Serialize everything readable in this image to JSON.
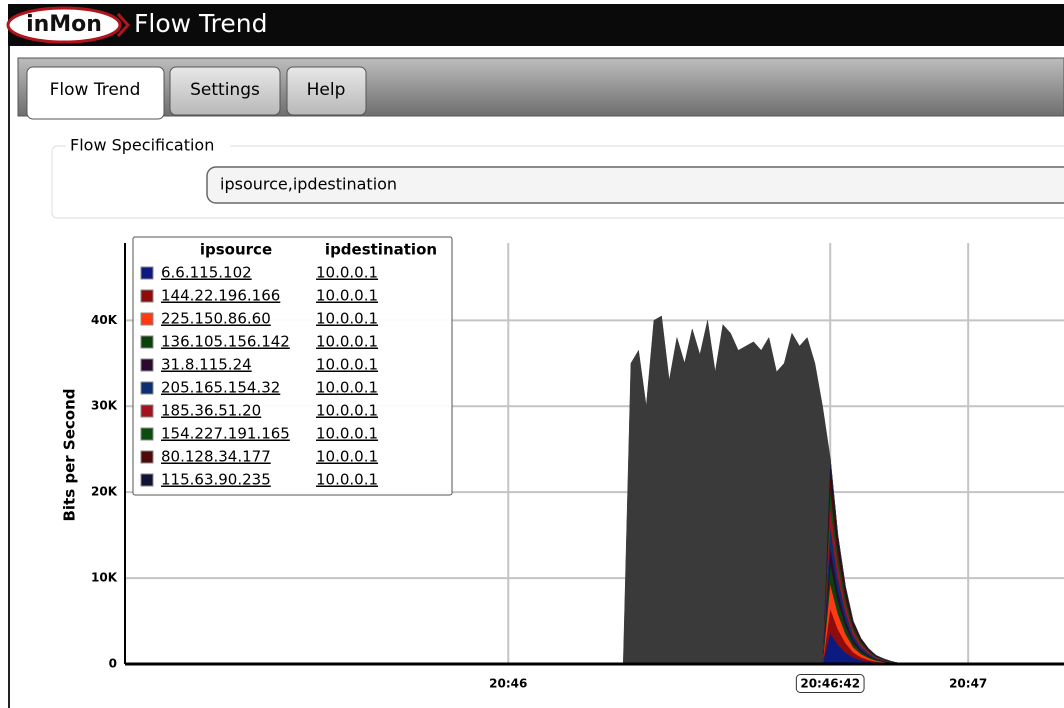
{
  "header": {
    "logo": "inMon",
    "title": "Flow Trend"
  },
  "tabs": [
    "Flow Trend",
    "Settings",
    "Help"
  ],
  "flow_spec": {
    "legend": "Flow Specification",
    "value": "ipsource,ipdestination"
  },
  "chart_data": {
    "type": "area",
    "ylabel": "Bits per Second",
    "xlim": [
      -50,
      72.5
    ],
    "xticks": [
      {
        "value": 0,
        "label": "20:46"
      },
      {
        "value": 42,
        "label": "20:46:42"
      },
      {
        "value": 60,
        "label": "20:47"
      }
    ],
    "ylim": [
      0,
      49000
    ],
    "yticks": [
      0,
      {
        "value": 10000,
        "label": "10K"
      },
      {
        "value": 20000,
        "label": "20K"
      },
      {
        "value": 30000,
        "label": "30K"
      },
      {
        "value": 40000,
        "label": "40K"
      }
    ],
    "grid": true,
    "stacked": true,
    "legend_columns": [
      "ipsource",
      "ipdestination"
    ],
    "x": [
      15,
      16,
      17,
      18,
      19,
      20,
      21,
      22,
      23,
      24,
      25,
      26,
      27,
      28,
      29,
      30,
      31,
      32,
      33,
      34,
      35,
      36,
      37,
      38,
      39,
      40,
      41,
      42,
      43,
      44,
      45,
      46,
      47,
      48,
      49,
      50,
      51,
      52
    ],
    "series": [
      {
        "name": "6.6.115.102",
        "destination": "10.0.0.1",
        "color": "#0d1a80",
        "values": [
          0,
          0,
          0,
          0,
          0,
          0,
          0,
          0,
          0,
          0,
          0,
          0,
          0,
          0,
          0,
          0,
          0,
          0,
          0,
          0,
          0,
          0,
          0,
          0,
          0,
          0,
          0,
          3600,
          2250,
          1350,
          750,
          450,
          270,
          150,
          90,
          45,
          15,
          0
        ]
      },
      {
        "name": "144.22.196.166",
        "destination": "10.0.0.1",
        "color": "#8e0c0c",
        "values": [
          0,
          0,
          0,
          0,
          0,
          0,
          0,
          0,
          0,
          0,
          0,
          0,
          0,
          0,
          0,
          0,
          0,
          0,
          0,
          0,
          0,
          0,
          0,
          0,
          0,
          0,
          0,
          2880,
          1800,
          1080,
          600,
          360,
          216,
          120,
          72,
          36,
          12,
          0
        ]
      },
      {
        "name": "225.150.86.60",
        "destination": "10.0.0.1",
        "color": "#ff3a12",
        "values": [
          0,
          0,
          0,
          0,
          0,
          0,
          0,
          0,
          0,
          0,
          0,
          0,
          0,
          0,
          0,
          0,
          0,
          0,
          0,
          0,
          0,
          0,
          0,
          0,
          0,
          0,
          0,
          2880,
          1800,
          1080,
          600,
          360,
          216,
          120,
          72,
          36,
          12,
          0
        ]
      },
      {
        "name": "136.105.156.142",
        "destination": "10.0.0.1",
        "color": "#0b420b",
        "values": [
          0,
          0,
          0,
          0,
          0,
          0,
          0,
          0,
          0,
          0,
          0,
          0,
          0,
          0,
          0,
          0,
          0,
          0,
          0,
          0,
          0,
          0,
          0,
          0,
          0,
          0,
          0,
          2400,
          1500,
          900,
          500,
          300,
          180,
          100,
          60,
          30,
          10,
          0
        ]
      },
      {
        "name": "31.8.115.24",
        "destination": "10.0.0.1",
        "color": "#2c0a30",
        "values": [
          0,
          0,
          0,
          0,
          0,
          0,
          0,
          0,
          0,
          0,
          0,
          0,
          0,
          0,
          0,
          0,
          0,
          0,
          0,
          0,
          0,
          0,
          0,
          0,
          0,
          0,
          0,
          1920,
          1200,
          720,
          400,
          240,
          144,
          80,
          48,
          24,
          8,
          0
        ]
      },
      {
        "name": "205.165.154.32",
        "destination": "10.0.0.1",
        "color": "#0c2e72",
        "values": [
          0,
          0,
          0,
          0,
          0,
          0,
          0,
          0,
          0,
          0,
          0,
          0,
          0,
          0,
          0,
          0,
          0,
          0,
          0,
          0,
          0,
          0,
          0,
          0,
          0,
          0,
          0,
          2400,
          1500,
          900,
          500,
          300,
          180,
          100,
          60,
          30,
          10,
          0
        ]
      },
      {
        "name": "185.36.51.20",
        "destination": "10.0.0.1",
        "color": "#a3121f",
        "values": [
          0,
          0,
          0,
          0,
          0,
          0,
          0,
          0,
          0,
          0,
          0,
          0,
          0,
          0,
          0,
          0,
          0,
          0,
          0,
          0,
          0,
          0,
          0,
          0,
          0,
          0,
          0,
          2400,
          1500,
          900,
          500,
          300,
          180,
          100,
          60,
          30,
          10,
          0
        ]
      },
      {
        "name": "154.227.191.165",
        "destination": "10.0.0.1",
        "color": "#0c4d0c",
        "values": [
          0,
          0,
          0,
          0,
          0,
          0,
          0,
          0,
          0,
          0,
          0,
          0,
          0,
          0,
          0,
          0,
          0,
          0,
          0,
          0,
          0,
          0,
          0,
          0,
          0,
          0,
          0,
          1920,
          1200,
          720,
          400,
          240,
          144,
          80,
          48,
          24,
          8,
          0
        ]
      },
      {
        "name": "80.128.34.177",
        "destination": "10.0.0.1",
        "color": "#4e0909",
        "values": [
          0,
          0,
          0,
          0,
          0,
          0,
          0,
          0,
          0,
          0,
          0,
          0,
          0,
          0,
          0,
          0,
          0,
          0,
          0,
          0,
          0,
          0,
          0,
          0,
          0,
          0,
          0,
          1920,
          1200,
          720,
          400,
          240,
          144,
          80,
          48,
          24,
          8,
          0
        ]
      },
      {
        "name": "115.63.90.235",
        "destination": "10.0.0.1",
        "color": "#111236",
        "values": [
          0,
          0,
          0,
          0,
          0,
          0,
          0,
          0,
          0,
          0,
          0,
          0,
          0,
          0,
          0,
          0,
          0,
          0,
          0,
          0,
          0,
          0,
          0,
          0,
          0,
          0,
          0,
          1680,
          1050,
          630,
          350,
          210,
          126,
          70,
          42,
          21,
          7,
          0
        ]
      },
      {
        "color": "#3a3a3a",
        "values": [
          0,
          35000,
          36500,
          30000,
          40000,
          40500,
          33000,
          38000,
          35000,
          39000,
          36000,
          40000,
          34000,
          39500,
          38500,
          36500,
          37000,
          37500,
          36500,
          38000,
          34000,
          35000,
          38500,
          37000,
          38000,
          35000,
          30000,
          0,
          0,
          0,
          0,
          0,
          0,
          0,
          0,
          0,
          0,
          0
        ]
      }
    ]
  }
}
